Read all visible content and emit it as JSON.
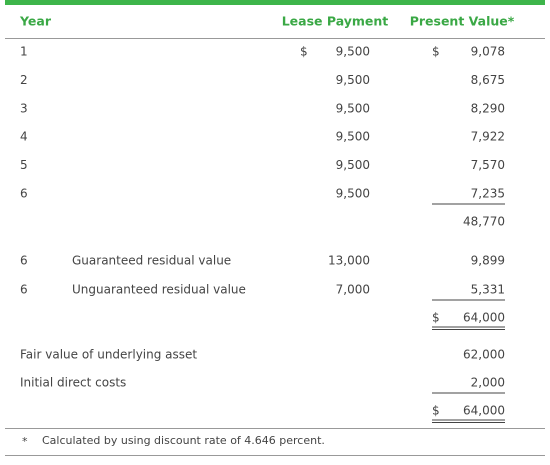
{
  "header": {
    "year": "Year",
    "lease_payment": "Lease Payment",
    "present_value": "Present Value*"
  },
  "payments": [
    {
      "year": "1",
      "lease_currency": "$",
      "lease": "9,500",
      "pv_currency": "$",
      "pv": "9,078"
    },
    {
      "year": "2",
      "lease": "9,500",
      "pv": "8,675"
    },
    {
      "year": "3",
      "lease": "9,500",
      "pv": "8,290"
    },
    {
      "year": "4",
      "lease": "9,500",
      "pv": "7,922"
    },
    {
      "year": "5",
      "lease": "9,500",
      "pv": "7,570"
    },
    {
      "year": "6",
      "lease": "9,500",
      "pv": "7,235"
    }
  ],
  "payments_subtotal": "48,770",
  "residuals": [
    {
      "year": "6",
      "label": "Guaranteed residual value",
      "lease": "13,000",
      "pv": "9,899"
    },
    {
      "year": "6",
      "label": "Unguaranteed residual value",
      "lease": "7,000",
      "pv": "5,331"
    }
  ],
  "residual_total": {
    "currency": "$",
    "value": "64,000"
  },
  "reconciliation": [
    {
      "label": "Fair value of underlying asset",
      "value": "62,000"
    },
    {
      "label": "Initial direct costs",
      "value": "2,000"
    }
  ],
  "reconciliation_total": {
    "currency": "$",
    "value": "64,000"
  },
  "footnote": {
    "marker": "*",
    "text": "Calculated by using discount rate of 4.646 percent."
  }
}
